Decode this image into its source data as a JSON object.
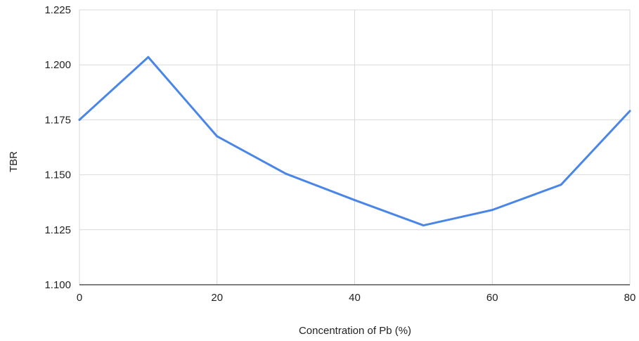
{
  "chart_data": {
    "type": "line",
    "title": "",
    "xlabel": "Concentration of Pb (%)",
    "ylabel": "TBR",
    "xlim": [
      0,
      80
    ],
    "ylim": [
      1.1,
      1.225
    ],
    "x_ticks": [
      "0",
      "20",
      "40",
      "60",
      "80"
    ],
    "y_ticks": [
      "1.100",
      "1.125",
      "1.150",
      "1.175",
      "1.200",
      "1.225"
    ],
    "grid": true,
    "legend": "none",
    "series": [
      {
        "x": [
          0,
          10,
          20,
          30,
          40,
          50,
          60,
          70,
          80
        ],
        "values": [
          1.175,
          1.2035,
          1.1675,
          1.1505,
          1.1385,
          1.127,
          1.134,
          1.1455,
          1.179
        ],
        "color": "#4a86e8"
      }
    ],
    "colors": {
      "line": "#4a86e8",
      "grid": "#d9d9d9",
      "axis": "#333333",
      "text": "#222222"
    }
  }
}
